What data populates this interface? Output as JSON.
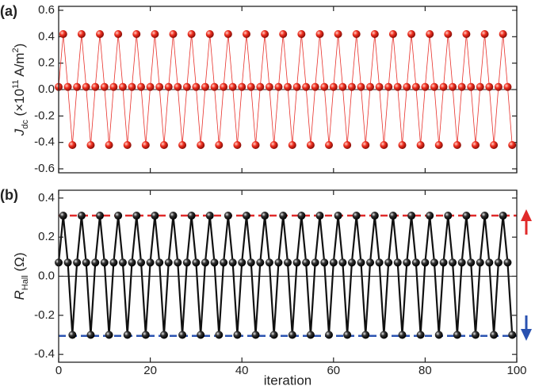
{
  "chart_data": [
    {
      "type": "line",
      "panel_label": "(a)",
      "ylabel_parts": [
        {
          "text": "J",
          "style": "italic"
        },
        {
          "text": "dc",
          "style": "sub"
        },
        {
          "text": " (×10",
          "style": "normal"
        },
        {
          "text": "11",
          "style": "sup"
        },
        {
          "text": " A/m",
          "style": "normal"
        },
        {
          "text": "2",
          "style": "sup"
        },
        {
          "text": ")",
          "style": "normal"
        }
      ],
      "xlim": [
        0,
        100
      ],
      "xticks": [
        0,
        20,
        40,
        60,
        80,
        100
      ],
      "show_xtick_labels": false,
      "ylim": [
        -0.63,
        0.63
      ],
      "yticks": [
        -0.6,
        -0.4,
        -0.2,
        {
          "value": 0,
          "label": "0.0"
        },
        0.2,
        0.4,
        0.6
      ],
      "zero_line": true,
      "x": [
        0,
        1,
        2,
        3,
        4,
        5,
        6,
        7,
        8,
        9,
        10,
        11,
        12,
        13,
        14,
        15,
        16,
        17,
        18,
        19,
        20,
        21,
        22,
        23,
        24,
        25,
        26,
        27,
        28,
        29,
        30,
        31,
        32,
        33,
        34,
        35,
        36,
        37,
        38,
        39,
        40,
        41,
        42,
        43,
        44,
        45,
        46,
        47,
        48,
        49,
        50,
        51,
        52,
        53,
        54,
        55,
        56,
        57,
        58,
        59,
        60,
        61,
        62,
        63,
        64,
        65,
        66,
        67,
        68,
        69,
        70,
        71,
        72,
        73,
        74,
        75,
        76,
        77,
        78,
        79,
        80,
        81,
        82,
        83,
        84,
        85,
        86,
        87,
        88,
        89,
        90,
        91,
        92,
        93,
        94,
        95,
        96,
        97,
        98,
        99
      ],
      "series": [
        {
          "color": "#e8302a",
          "line_width": 0.8,
          "marker": "red",
          "values": [
            0.02,
            0.42,
            0.02,
            -0.42,
            0.02,
            0.42,
            0.02,
            -0.42,
            0.02,
            0.42,
            0.02,
            -0.42,
            0.02,
            0.42,
            0.02,
            -0.42,
            0.02,
            0.42,
            0.02,
            -0.42,
            0.02,
            0.42,
            0.02,
            -0.42,
            0.02,
            0.42,
            0.02,
            -0.42,
            0.02,
            0.42,
            0.02,
            -0.42,
            0.02,
            0.42,
            0.02,
            -0.42,
            0.02,
            0.42,
            0.02,
            -0.42,
            0.02,
            0.42,
            0.02,
            -0.42,
            0.02,
            0.42,
            0.02,
            -0.42,
            0.02,
            0.42,
            0.02,
            -0.42,
            0.02,
            0.42,
            0.02,
            -0.42,
            0.02,
            0.42,
            0.02,
            -0.42,
            0.02,
            0.42,
            0.02,
            -0.42,
            0.02,
            0.42,
            0.02,
            -0.42,
            0.02,
            0.42,
            0.02,
            -0.42,
            0.02,
            0.42,
            0.02,
            -0.42,
            0.02,
            0.42,
            0.02,
            -0.42,
            0.02,
            0.42,
            0.02,
            -0.42,
            0.02,
            0.42,
            0.02,
            -0.42,
            0.02,
            0.42,
            0.02,
            -0.42,
            0.02,
            0.42,
            0.02,
            -0.42,
            0.02,
            0.42,
            0.02,
            -0.42
          ]
        }
      ]
    },
    {
      "type": "line",
      "panel_label": "(b)",
      "ylabel_parts": [
        {
          "text": "R",
          "style": "italic"
        },
        {
          "text": "Hall",
          "style": "sub"
        },
        {
          "text": " (Ω)",
          "style": "normal"
        }
      ],
      "xlabel": "iteration",
      "xlim": [
        0,
        100
      ],
      "xticks": [
        0,
        20,
        40,
        60,
        80,
        100
      ],
      "show_xtick_labels": true,
      "ylim": [
        -0.44,
        0.44
      ],
      "yticks": [
        -0.4,
        -0.2,
        {
          "value": 0,
          "label": "0.0"
        },
        0.2,
        0.4
      ],
      "zero_line": true,
      "reference_lines": [
        {
          "value": 0.31,
          "color": "#e02a2a"
        },
        {
          "value": -0.305,
          "color": "#2a52b0"
        }
      ],
      "x": [
        0,
        1,
        2,
        3,
        4,
        5,
        6,
        7,
        8,
        9,
        10,
        11,
        12,
        13,
        14,
        15,
        16,
        17,
        18,
        19,
        20,
        21,
        22,
        23,
        24,
        25,
        26,
        27,
        28,
        29,
        30,
        31,
        32,
        33,
        34,
        35,
        36,
        37,
        38,
        39,
        40,
        41,
        42,
        43,
        44,
        45,
        46,
        47,
        48,
        49,
        50,
        51,
        52,
        53,
        54,
        55,
        56,
        57,
        58,
        59,
        60,
        61,
        62,
        63,
        64,
        65,
        66,
        67,
        68,
        69,
        70,
        71,
        72,
        73,
        74,
        75,
        76,
        77,
        78,
        79,
        80,
        81,
        82,
        83,
        84,
        85,
        86,
        87,
        88,
        89,
        90,
        91,
        92,
        93,
        94,
        95,
        96,
        97,
        98,
        99
      ],
      "series": [
        {
          "color": "#111111",
          "line_width": 2.2,
          "marker": "black",
          "values": [
            0.07,
            0.31,
            0.07,
            -0.3,
            0.07,
            0.31,
            0.07,
            -0.3,
            0.07,
            0.31,
            0.07,
            -0.3,
            0.07,
            0.31,
            0.07,
            -0.3,
            0.07,
            0.31,
            0.07,
            -0.3,
            0.07,
            0.31,
            0.07,
            -0.3,
            0.07,
            0.31,
            0.07,
            -0.3,
            0.07,
            0.31,
            0.07,
            -0.3,
            0.07,
            0.31,
            0.07,
            -0.3,
            0.07,
            0.31,
            0.07,
            -0.3,
            0.07,
            0.31,
            0.07,
            -0.3,
            0.07,
            0.31,
            0.07,
            -0.3,
            0.07,
            0.31,
            0.07,
            -0.3,
            0.07,
            0.31,
            0.07,
            -0.3,
            0.07,
            0.31,
            0.07,
            -0.3,
            0.07,
            0.31,
            0.07,
            -0.3,
            0.07,
            0.31,
            0.07,
            -0.3,
            0.07,
            0.31,
            0.07,
            -0.3,
            0.07,
            0.31,
            0.07,
            -0.3,
            0.07,
            0.31,
            0.07,
            -0.3,
            0.07,
            0.31,
            0.07,
            -0.3,
            0.07,
            0.31,
            0.07,
            -0.3,
            0.07,
            0.31,
            0.07,
            -0.3,
            0.07,
            0.31,
            0.07,
            -0.3,
            0.07,
            0.31,
            0.07,
            -0.3
          ]
        }
      ]
    }
  ]
}
